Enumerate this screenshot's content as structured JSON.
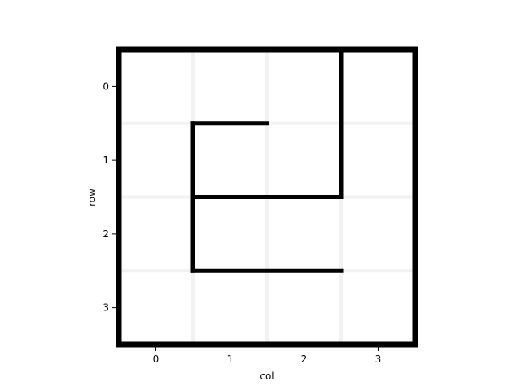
{
  "maze": {
    "rows": 4,
    "cols": 4,
    "xlabel": "col",
    "ylabel": "row",
    "x_ticks": [
      "0",
      "1",
      "2",
      "3"
    ],
    "y_ticks": [
      "0",
      "1",
      "2",
      "3"
    ],
    "grid": true,
    "wall_color": "#000000",
    "grid_color": "#f2f2f2",
    "walls": [
      {
        "from": [
          2.5,
          -0.5
        ],
        "to": [
          2.5,
          1.5
        ]
      },
      {
        "from": [
          0.5,
          0.5
        ],
        "to": [
          1.5,
          0.5
        ]
      },
      {
        "from": [
          0.5,
          0.5
        ],
        "to": [
          0.5,
          2.5
        ]
      },
      {
        "from": [
          0.5,
          1.5
        ],
        "to": [
          2.5,
          1.5
        ]
      },
      {
        "from": [
          0.5,
          2.5
        ],
        "to": [
          2.5,
          2.5
        ]
      }
    ]
  }
}
